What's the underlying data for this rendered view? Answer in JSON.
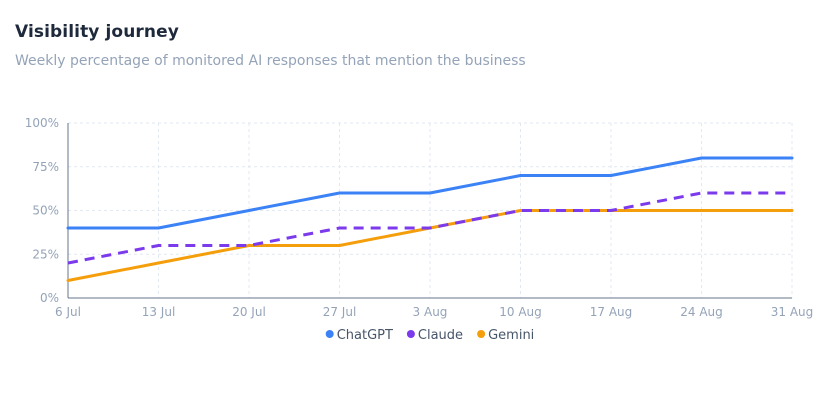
{
  "header": {
    "title": "Visibility journey",
    "subtitle": "Weekly percentage of monitored AI responses that mention the business"
  },
  "chart_data": {
    "type": "line",
    "title": "Visibility journey",
    "subtitle": "Weekly percentage of monitored AI responses that mention the business",
    "xlabel": "",
    "ylabel": "",
    "categories": [
      "6 Jul",
      "13 Jul",
      "20 Jul",
      "27 Jul",
      "3 Aug",
      "10 Aug",
      "17 Aug",
      "24 Aug",
      "31 Aug"
    ],
    "ylim": [
      0,
      100
    ],
    "y_ticks": [
      0,
      25,
      50,
      75,
      100
    ],
    "y_tick_labels": [
      "0%",
      "25%",
      "50%",
      "75%",
      "100%"
    ],
    "grid": true,
    "legend_position": "bottom",
    "series": [
      {
        "name": "ChatGPT",
        "color": "#3b82f6",
        "dash": "solid",
        "values": [
          40,
          40,
          50,
          60,
          60,
          70,
          70,
          80,
          80
        ]
      },
      {
        "name": "Claude",
        "color": "#7c3aed",
        "dash": "dashed",
        "values": [
          20,
          30,
          30,
          40,
          40,
          50,
          50,
          60,
          60
        ]
      },
      {
        "name": "Gemini",
        "color": "#f59e0b",
        "dash": "solid",
        "values": [
          10,
          20,
          30,
          30,
          40,
          50,
          50,
          50,
          50
        ]
      }
    ]
  }
}
